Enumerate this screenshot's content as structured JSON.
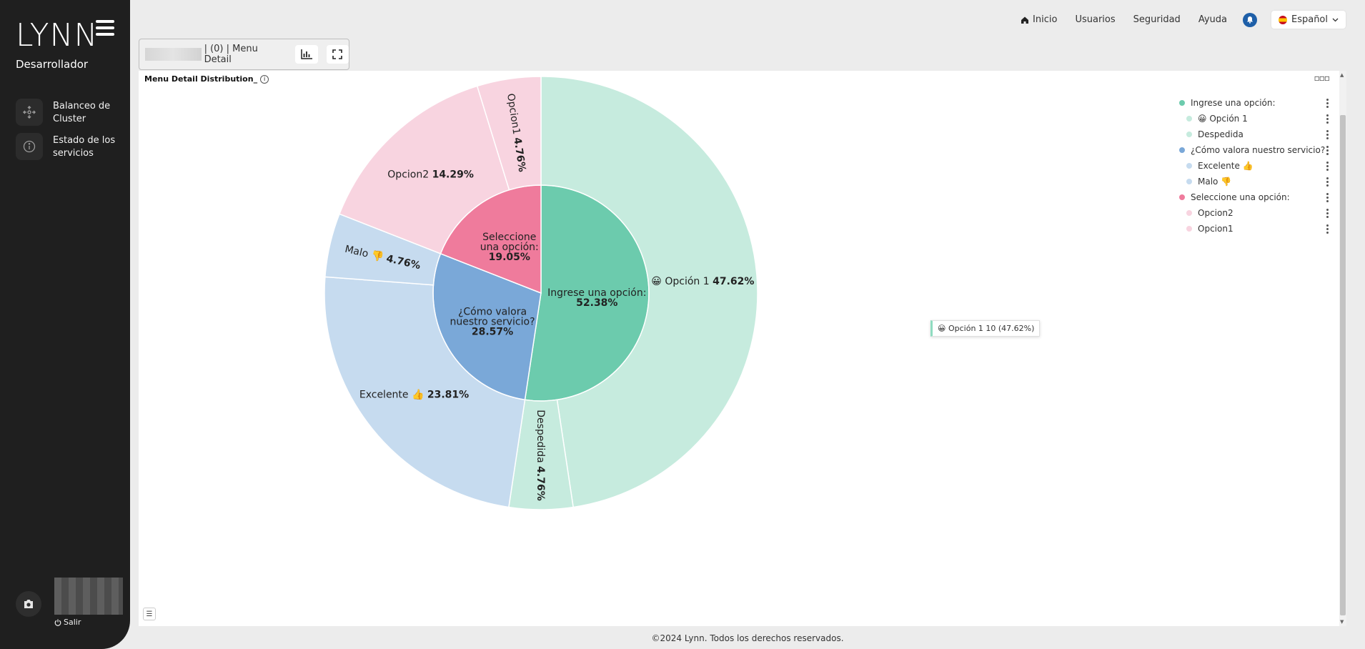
{
  "sidebar": {
    "logo": "LYNN",
    "role": "Desarrollador",
    "items": [
      {
        "label": "Balanceo de Cluster"
      },
      {
        "label": "Estado de los servicios"
      }
    ],
    "logout": "Salir"
  },
  "topnav": {
    "home": "Inicio",
    "users": "Usuarios",
    "security": "Seguridad",
    "help": "Ayuda",
    "language": "Español"
  },
  "panel": {
    "header_text": "| (0) | Menu Detail",
    "chart_title": "Menu Detail Distribution_"
  },
  "chart_data": {
    "type": "pie",
    "subtype": "sunburst",
    "inner": [
      {
        "label": "Ingrese una opción:",
        "percent": 52.38,
        "color": "#6ccbad"
      },
      {
        "label": "¿Cómo valora nuestro servicio?",
        "percent": 28.57,
        "color": "#7aa8d8"
      },
      {
        "label": "Seleccione una opción:",
        "percent": 19.05,
        "color": "#ef7b9c"
      }
    ],
    "outer": [
      {
        "label": "😀 Opción 1",
        "percent": 47.62,
        "parent": "Ingrese una opción:",
        "color": "#c6ebde",
        "count": 10
      },
      {
        "label": "Despedida",
        "percent": 4.76,
        "parent": "Ingrese una opción:",
        "color": "#c6ebde"
      },
      {
        "label": "Excelente 👍",
        "percent": 23.81,
        "parent": "¿Cómo valora nuestro servicio?",
        "color": "#c6dbef"
      },
      {
        "label": "Malo 👎",
        "percent": 4.76,
        "parent": "¿Cómo valora nuestro servicio?",
        "color": "#c6dbef"
      },
      {
        "label": "Opcion2",
        "percent": 14.29,
        "parent": "Seleccione una opción:",
        "color": "#f8d4e0"
      },
      {
        "label": "Opcion1",
        "percent": 4.76,
        "parent": "Seleccione una opción:",
        "color": "#f8d4e0"
      }
    ],
    "legend": [
      {
        "label": "Ingrese una opción:",
        "color": "#6ccbad",
        "level": 0
      },
      {
        "label": "😀 Opción 1",
        "color": "#c6ebde",
        "level": 1
      },
      {
        "label": "Despedida",
        "color": "#c6ebde",
        "level": 1
      },
      {
        "label": "¿Cómo valora nuestro servicio?",
        "color": "#7aa8d8",
        "level": 0
      },
      {
        "label": "Excelente 👍",
        "color": "#c6dbef",
        "level": 1
      },
      {
        "label": "Malo 👎",
        "color": "#c6dbef",
        "level": 1
      },
      {
        "label": "Seleccione una opción:",
        "color": "#ef7b9c",
        "level": 0
      },
      {
        "label": "Opcion2",
        "color": "#f8d4e0",
        "level": 1
      },
      {
        "label": "Opcion1",
        "color": "#f8d4e0",
        "level": 1
      }
    ],
    "legend_position": "top-right",
    "tooltip": "😀 Opción 1   10 (47.62%)"
  },
  "footer": "©2024 Lynn. Todos los derechos reservados."
}
